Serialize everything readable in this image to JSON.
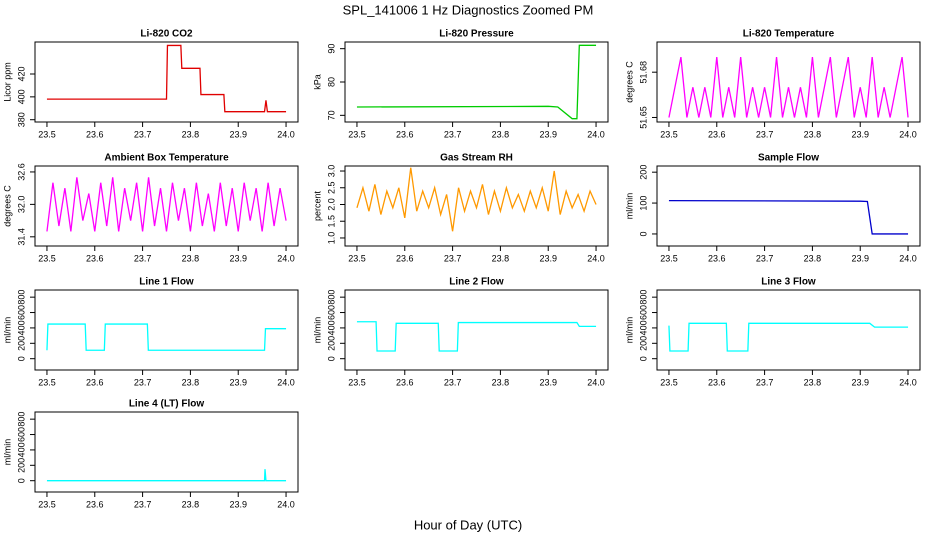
{
  "title": "SPL_141006  1 Hz Diagnostics Zoomed PM",
  "xlabel": "Hour of Day (UTC)",
  "chart_data": [
    {
      "type": "line",
      "title": "Li-820 CO2",
      "ylabel": "Licor ppm",
      "color": "#e00000",
      "xlim": [
        23.475,
        24.025
      ],
      "xticks": [
        23.5,
        23.6,
        23.7,
        23.8,
        23.9,
        {
          "value": 24,
          "label": "24.0"
        }
      ],
      "ylim": [
        378,
        448
      ],
      "yticks": [
        380,
        400,
        420
      ],
      "x": [
        23.5,
        23.75,
        23.752,
        23.78,
        23.782,
        23.82,
        23.822,
        23.87,
        23.872,
        23.955,
        23.958,
        23.961,
        24.0
      ],
      "values": [
        398,
        398,
        445,
        445,
        425,
        425,
        402,
        402,
        387,
        387,
        397,
        387,
        387
      ]
    },
    {
      "type": "line",
      "title": "Li-820 Pressure",
      "ylabel": "kPa",
      "color": "#00cc00",
      "xlim": [
        23.475,
        24.025
      ],
      "xticks": [
        23.5,
        23.6,
        23.7,
        23.8,
        23.9,
        {
          "value": 24,
          "label": "24.0"
        }
      ],
      "ylim": [
        68,
        92
      ],
      "yticks": [
        70,
        80,
        90
      ],
      "x": [
        23.5,
        23.9,
        23.92,
        23.95,
        23.96,
        23.965,
        24.0
      ],
      "values": [
        72.5,
        72.7,
        72.5,
        69,
        69,
        91,
        91
      ]
    },
    {
      "type": "line",
      "title": "Li-820 Temperature",
      "ylabel": "degrees C",
      "color": "#ff00ff",
      "xlim": [
        23.475,
        24.025
      ],
      "xticks": [
        23.5,
        23.6,
        23.7,
        23.8,
        23.9,
        {
          "value": 24,
          "label": "24.0"
        }
      ],
      "ylim": [
        51.647,
        51.7
      ],
      "yticks": [
        51.65,
        51.68
      ],
      "x": [
        23.5,
        23.5125,
        23.525,
        23.5375,
        23.55,
        23.5625,
        23.575,
        23.5875,
        23.6,
        23.6125,
        23.625,
        23.6375,
        23.65,
        23.6625,
        23.675,
        23.6875,
        23.7,
        23.7125,
        23.725,
        23.7375,
        23.75,
        23.7625,
        23.775,
        23.7875,
        23.8,
        23.8125,
        23.825,
        23.8375,
        23.85,
        23.8625,
        23.875,
        23.8875,
        23.9,
        23.9125,
        23.925,
        23.9375,
        23.95,
        23.9625,
        23.975,
        23.9875,
        24.0
      ],
      "values": [
        51.65,
        51.67,
        51.69,
        51.65,
        51.67,
        51.65,
        51.67,
        51.65,
        51.69,
        51.65,
        51.67,
        51.65,
        51.69,
        51.65,
        51.67,
        51.65,
        51.67,
        51.65,
        51.69,
        51.65,
        51.67,
        51.65,
        51.67,
        51.65,
        51.69,
        51.65,
        51.67,
        51.69,
        51.65,
        51.67,
        51.69,
        51.65,
        51.67,
        51.65,
        51.69,
        51.65,
        51.67,
        51.65,
        51.67,
        51.69,
        51.65
      ]
    },
    {
      "type": "line",
      "title": "Ambient Box Temperature",
      "ylabel": "degrees C",
      "color": "#ff00ff",
      "xlim": [
        23.475,
        24.025
      ],
      "xticks": [
        23.5,
        23.6,
        23.7,
        23.8,
        23.9,
        {
          "value": 24,
          "label": "24.0"
        }
      ],
      "ylim": [
        31.23,
        32.71
      ],
      "yticks": [
        31.4,
        {
          "value": 32,
          "label": "32.0"
        },
        32.6
      ],
      "x": [
        23.5,
        23.5125,
        23.525,
        23.5375,
        23.55,
        23.5625,
        23.575,
        23.5875,
        23.6,
        23.6125,
        23.625,
        23.6375,
        23.65,
        23.6625,
        23.675,
        23.6875,
        23.7,
        23.7125,
        23.725,
        23.7375,
        23.75,
        23.7625,
        23.775,
        23.7875,
        23.8,
        23.8125,
        23.825,
        23.8375,
        23.85,
        23.8625,
        23.875,
        23.8875,
        23.9,
        23.9125,
        23.925,
        23.9375,
        23.95,
        23.9625,
        23.975,
        23.9875,
        24.0
      ],
      "values": [
        31.5,
        32.4,
        31.6,
        32.3,
        31.5,
        32.5,
        31.7,
        32.2,
        31.5,
        32.4,
        31.6,
        32.5,
        31.5,
        32.3,
        31.7,
        32.4,
        31.5,
        32.5,
        31.6,
        32.3,
        31.5,
        32.4,
        31.7,
        32.3,
        31.5,
        32.4,
        31.6,
        32.2,
        31.5,
        32.4,
        31.6,
        32.3,
        31.5,
        32.4,
        31.7,
        32.3,
        31.5,
        32.4,
        31.6,
        32.3,
        31.7
      ]
    },
    {
      "type": "line",
      "title": "Gas Stream RH",
      "ylabel": "percent",
      "color": "#ff9900",
      "xlim": [
        23.475,
        24.025
      ],
      "xticks": [
        23.5,
        23.6,
        23.7,
        23.8,
        23.9,
        {
          "value": 24,
          "label": "24.0"
        }
      ],
      "ylim": [
        0.76,
        3.15
      ],
      "yticks": [
        {
          "value": 1,
          "label": "1.0"
        },
        1.5,
        {
          "value": 2,
          "label": "2.0"
        },
        2.5,
        {
          "value": 3,
          "label": "3.0"
        }
      ],
      "x": [
        23.5,
        23.5125,
        23.525,
        23.5375,
        23.55,
        23.5625,
        23.575,
        23.5875,
        23.6,
        23.6125,
        23.625,
        23.6375,
        23.65,
        23.6625,
        23.675,
        23.6875,
        23.7,
        23.7125,
        23.725,
        23.7375,
        23.75,
        23.7625,
        23.775,
        23.7875,
        23.8,
        23.8125,
        23.825,
        23.8375,
        23.85,
        23.8625,
        23.875,
        23.8875,
        23.9,
        23.9125,
        23.925,
        23.9375,
        23.95,
        23.9625,
        23.975,
        23.9875,
        24.0
      ],
      "values": [
        1.9,
        2.5,
        1.8,
        2.6,
        1.7,
        2.4,
        1.9,
        2.5,
        1.6,
        3.1,
        1.8,
        2.4,
        1.9,
        2.5,
        1.7,
        2.3,
        1.2,
        2.5,
        1.8,
        2.4,
        1.9,
        2.6,
        1.7,
        2.4,
        1.8,
        2.5,
        1.9,
        2.3,
        1.8,
        2.4,
        1.9,
        2.5,
        1.8,
        3.0,
        1.7,
        2.4,
        1.9,
        2.3,
        1.8,
        2.4,
        2.0
      ]
    },
    {
      "type": "line",
      "title": "Sample Flow",
      "ylabel": "ml/min",
      "color": "#0000cc",
      "xlim": [
        23.475,
        24.025
      ],
      "xticks": [
        23.5,
        23.6,
        23.7,
        23.8,
        23.9,
        {
          "value": 24,
          "label": "24.0"
        }
      ],
      "ylim": [
        -39,
        220
      ],
      "yticks": [
        0,
        100,
        200
      ],
      "x": [
        23.5,
        23.9,
        23.915,
        23.925,
        24.0
      ],
      "values": [
        108,
        106,
        105,
        0,
        0
      ]
    },
    {
      "type": "line",
      "title": "Line 1 Flow",
      "ylabel": "ml/min",
      "color": "#00ffff",
      "xlim": [
        23.475,
        24.025
      ],
      "xticks": [
        23.5,
        23.6,
        23.7,
        23.8,
        23.9,
        {
          "value": 24,
          "label": "24.0"
        }
      ],
      "ylim": [
        -147,
        893
      ],
      "yticks": [
        0,
        200,
        400,
        600,
        800
      ],
      "x": [
        23.5,
        23.502,
        23.58,
        23.582,
        23.62,
        23.622,
        23.71,
        23.712,
        23.955,
        23.957,
        24.0
      ],
      "values": [
        110,
        450,
        450,
        110,
        110,
        450,
        450,
        110,
        110,
        390,
        390
      ]
    },
    {
      "type": "line",
      "title": "Line 2 Flow",
      "ylabel": "ml/min",
      "color": "#00ffff",
      "xlim": [
        23.475,
        24.025
      ],
      "xticks": [
        23.5,
        23.6,
        23.7,
        23.8,
        23.9,
        {
          "value": 24,
          "label": "24.0"
        }
      ],
      "ylim": [
        -147,
        893
      ],
      "yticks": [
        0,
        200,
        400,
        600,
        800
      ],
      "x": [
        23.5,
        23.54,
        23.542,
        23.58,
        23.582,
        23.67,
        23.672,
        23.71,
        23.712,
        23.96,
        23.965,
        24.0
      ],
      "values": [
        480,
        480,
        100,
        100,
        460,
        460,
        100,
        100,
        470,
        470,
        420,
        420
      ]
    },
    {
      "type": "line",
      "title": "Line 3 Flow",
      "ylabel": "ml/min",
      "color": "#00ffff",
      "xlim": [
        23.475,
        24.025
      ],
      "xticks": [
        23.5,
        23.6,
        23.7,
        23.8,
        23.9,
        {
          "value": 24,
          "label": "24.0"
        }
      ],
      "ylim": [
        -147,
        893
      ],
      "yticks": [
        0,
        200,
        400,
        600,
        800
      ],
      "x": [
        23.5,
        23.502,
        23.54,
        23.542,
        23.62,
        23.622,
        23.665,
        23.667,
        23.92,
        23.93,
        24.0
      ],
      "values": [
        430,
        100,
        100,
        460,
        460,
        100,
        100,
        460,
        460,
        410,
        410
      ]
    },
    {
      "type": "line",
      "title": "Line 4 (LT) Flow",
      "ylabel": "ml/min",
      "color": "#00ffff",
      "xlim": [
        23.475,
        24.025
      ],
      "xticks": [
        23.5,
        23.6,
        23.7,
        23.8,
        23.9,
        {
          "value": 24,
          "label": "24.0"
        }
      ],
      "ylim": [
        -147,
        893
      ],
      "yticks": [
        0,
        200,
        400,
        600,
        800
      ],
      "x": [
        23.5,
        23.955,
        23.956,
        23.958,
        24.0
      ],
      "values": [
        0,
        0,
        150,
        0,
        0
      ]
    }
  ]
}
